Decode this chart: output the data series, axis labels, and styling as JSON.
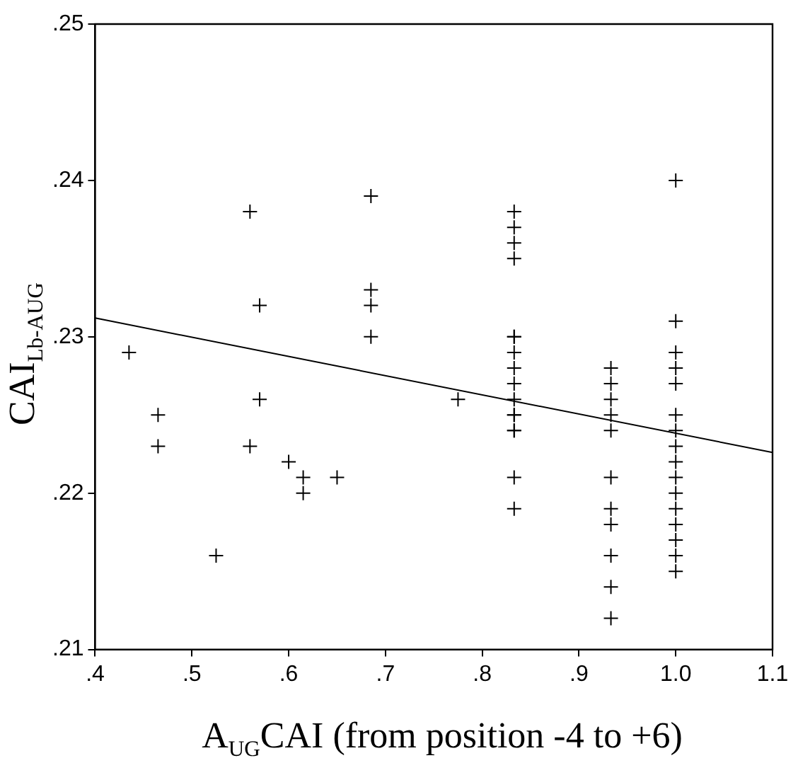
{
  "chart_data": {
    "type": "scatter",
    "xlabel": "A$_{UG}$CAI (from position -4 to +6)",
    "ylabel": "CAI$_{Lb-AUG}$",
    "grid": false,
    "legend": false,
    "xlim": [
      0.4,
      1.1
    ],
    "xticks": [
      {
        "value": 0.4,
        "label": ".4"
      },
      {
        "value": 0.5,
        "label": ".5"
      },
      {
        "value": 0.6,
        "label": ".6"
      },
      {
        "value": 0.7,
        "label": ".7"
      },
      {
        "value": 0.8,
        "label": ".8"
      },
      {
        "value": 0.9,
        "label": ".9"
      },
      {
        "value": 1.0,
        "label": "1.0"
      },
      {
        "value": 1.1,
        "label": "1.1"
      }
    ],
    "ylim": [
      0.21,
      0.25
    ],
    "yticks": [
      {
        "value": 0.21,
        "label": ".21"
      },
      {
        "value": 0.22,
        "label": ".22"
      },
      {
        "value": 0.23,
        "label": ".23"
      },
      {
        "value": 0.24,
        "label": ".24"
      },
      {
        "value": 0.25,
        "label": ".25"
      }
    ],
    "series": [
      {
        "color": "#000000",
        "marker": "cross",
        "x": [
          0.435,
          0.465,
          0.465,
          0.525,
          0.56,
          0.56,
          0.57,
          0.57,
          0.6,
          0.615,
          0.615,
          0.65,
          0.685,
          0.685,
          0.685,
          0.685,
          0.775,
          0.833,
          0.833,
          0.833,
          0.833,
          0.833,
          0.833,
          0.833,
          0.833,
          0.833,
          0.833,
          0.833,
          0.833,
          0.833,
          0.833,
          0.833,
          0.833,
          0.933,
          0.933,
          0.933,
          0.933,
          0.933,
          0.933,
          0.933,
          0.933,
          0.933,
          0.933,
          0.933,
          1.0,
          1.0,
          1.0,
          1.0,
          1.0,
          1.0,
          1.0,
          1.0,
          1.0,
          1.0,
          1.0,
          1.0,
          1.0,
          1.0,
          1.0,
          1.0
        ],
        "values": [
          0.229,
          0.225,
          0.223,
          0.216,
          0.238,
          0.223,
          0.232,
          0.226,
          0.222,
          0.221,
          0.22,
          0.221,
          0.239,
          0.233,
          0.232,
          0.23,
          0.226,
          0.238,
          0.237,
          0.236,
          0.235,
          0.23,
          0.23,
          0.229,
          0.228,
          0.227,
          0.226,
          0.225,
          0.225,
          0.224,
          0.224,
          0.221,
          0.219,
          0.228,
          0.227,
          0.226,
          0.225,
          0.224,
          0.221,
          0.219,
          0.218,
          0.216,
          0.214,
          0.212,
          0.24,
          0.231,
          0.229,
          0.228,
          0.227,
          0.225,
          0.224,
          0.223,
          0.222,
          0.221,
          0.22,
          0.219,
          0.218,
          0.217,
          0.216,
          0.215
        ]
      },
      {
        "type": "line",
        "marker": "none",
        "color": "#000000",
        "x": [
          0.4,
          1.1
        ],
        "values": [
          0.2312,
          0.2226
        ]
      }
    ]
  }
}
